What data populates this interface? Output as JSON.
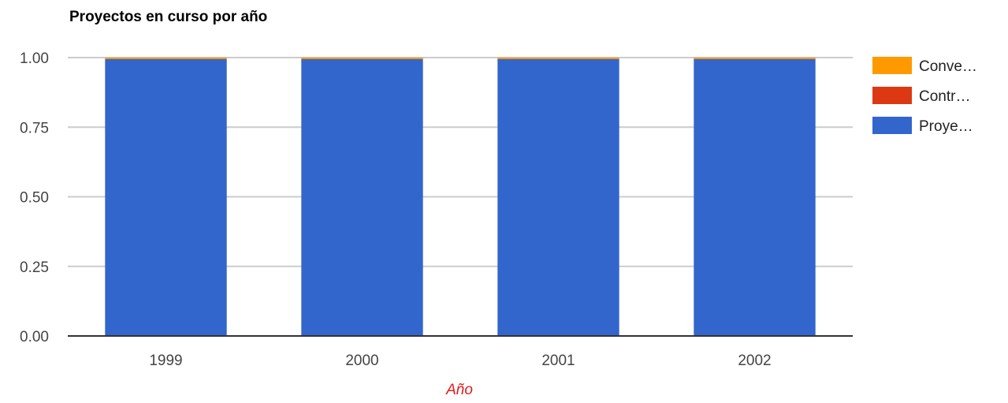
{
  "chart_data": {
    "type": "bar",
    "stacked": true,
    "title": "Proyectos en curso por año",
    "xlabel": "Año",
    "ylabel": "",
    "categories": [
      "1999",
      "2000",
      "2001",
      "2002"
    ],
    "ylim": [
      0,
      1
    ],
    "yticks": [
      "0.00",
      "0.25",
      "0.50",
      "0.75",
      "1.00"
    ],
    "grid": true,
    "legend_position": "right",
    "series": [
      {
        "name": "Proye…",
        "color": "#3366cc",
        "values": [
          0.996,
          0.996,
          0.996,
          0.996
        ]
      },
      {
        "name": "Contr…",
        "color": "#dc3912",
        "values": [
          0,
          0,
          0,
          0
        ]
      },
      {
        "name": "Conve…",
        "color": "#ff9900",
        "values": [
          0.004,
          0.004,
          0.004,
          0.004
        ]
      }
    ],
    "legend_order": [
      "Conve…",
      "Contr…",
      "Proye…"
    ]
  }
}
